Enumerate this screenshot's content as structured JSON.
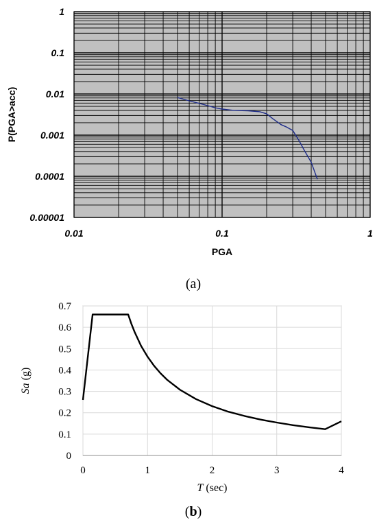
{
  "chart_data": [
    {
      "type": "line",
      "panel": "a",
      "xlabel": "PGA",
      "ylabel": "P(PGA>acc)",
      "x_scale": "log",
      "y_scale": "log",
      "xlim": [
        0.01,
        1
      ],
      "ylim": [
        1e-05,
        1
      ],
      "x_ticks": [
        0.01,
        0.1,
        1
      ],
      "x_tick_labels": [
        "0.01",
        "0.1",
        "1"
      ],
      "y_ticks": [
        1e-05,
        0.0001,
        0.001,
        0.01,
        0.1,
        1
      ],
      "y_tick_labels": [
        "0.00001",
        "0.0001",
        "0.001",
        "0.01",
        "0.1",
        "1"
      ],
      "grid": true,
      "background": "#c0c0c0",
      "line_color": "#1f2d8a",
      "series": [
        {
          "x": [
            0.05,
            0.06,
            0.07,
            0.08,
            0.09,
            0.1,
            0.12,
            0.15,
            0.18,
            0.2,
            0.22,
            0.25,
            0.27,
            0.3,
            0.33,
            0.36,
            0.4,
            0.44
          ],
          "y": [
            0.0082,
            0.0068,
            0.0059,
            0.0052,
            0.0046,
            0.0043,
            0.004,
            0.0039,
            0.0037,
            0.0033,
            0.0025,
            0.0018,
            0.0016,
            0.0013,
            0.00075,
            0.00042,
            0.00022,
            8.5e-05
          ]
        }
      ]
    },
    {
      "type": "line",
      "panel": "b",
      "xlabel_symbol": "T",
      "xlabel_unit": "(sec)",
      "ylabel_symbol": "Sa",
      "ylabel_unit": "(g)",
      "xlim": [
        0,
        4
      ],
      "ylim": [
        0,
        0.7
      ],
      "x_ticks": [
        0,
        1,
        2,
        3,
        4
      ],
      "x_tick_labels": [
        "0",
        "1",
        "2",
        "3",
        "4"
      ],
      "y_ticks": [
        0,
        0.1,
        0.2,
        0.3,
        0.4,
        0.5,
        0.6,
        0.7
      ],
      "y_tick_labels": [
        "0",
        "0.1",
        "0.2",
        "0.3",
        "0.4",
        "0.5",
        "0.6",
        "0.7"
      ],
      "grid": true,
      "line_color": "#000000",
      "series": [
        {
          "x": [
            0.0,
            0.15,
            0.7,
            0.75,
            0.8,
            0.9,
            1.0,
            1.1,
            1.2,
            1.3,
            1.5,
            1.75,
            2.0,
            2.25,
            2.5,
            2.75,
            3.0,
            3.25,
            3.5,
            3.75,
            4.0
          ],
          "y": [
            0.26,
            0.66,
            0.66,
            0.616,
            0.578,
            0.513,
            0.462,
            0.42,
            0.385,
            0.355,
            0.308,
            0.264,
            0.231,
            0.205,
            0.185,
            0.168,
            0.154,
            0.142,
            0.132,
            0.123,
            0.16
          ]
        }
      ]
    }
  ],
  "captions": {
    "a": "a",
    "b": "b"
  }
}
